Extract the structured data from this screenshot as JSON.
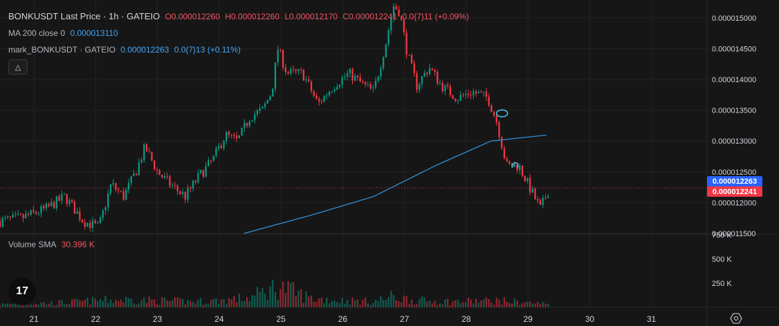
{
  "legend": {
    "symbol": "BONKUSDT Last Price · 1h · GATEIO",
    "open": "O0.000012260",
    "high": "H0.000012260",
    "low": "L0.000012170",
    "close": "C0.000012241",
    "change": "0.0{7}11 (+0.09%)",
    "ma_label": "MA 200 close 0",
    "ma_value": "0.000013110",
    "mark_label": "mark_BONKUSDT · GATEIO",
    "mark_value": "0.000012263",
    "mark_change": "0.0{7}13 (+0.11%)",
    "volume_label": "Volume SMA",
    "volume_value": "30.396 K"
  },
  "logo_text": "17",
  "icons": {
    "collapse": "chevron-up-icon",
    "settings": "gear-icon",
    "logo": "tradingview-logo-icon"
  },
  "colors": {
    "up": "#089981",
    "down": "#f23645",
    "ma": "#2d8fd8",
    "mark_badge": "#2962ff",
    "last_badge": "#f23645"
  },
  "chart_data": {
    "type": "candlestick",
    "price_axis": {
      "ylim": [
        1.15e-05,
        1.52e-05
      ],
      "ticks": [
        1.15e-05,
        1.2e-05,
        1.25e-05,
        1.3e-05,
        1.35e-05,
        1.4e-05,
        1.45e-05,
        1.5e-05
      ],
      "tick_labels": [
        "0.000011500",
        "0.000012000",
        "0.000012500",
        "0.000013000",
        "0.000013500",
        "0.000014000",
        "0.000014500",
        "0.000015000"
      ]
    },
    "volume_axis": {
      "ylim": [
        0,
        750000
      ],
      "ticks": [
        250000,
        500000,
        750000
      ],
      "tick_labels": [
        "250 K",
        "500 K",
        "750 K"
      ]
    },
    "x_axis": {
      "days": [
        21,
        22,
        23,
        24,
        25,
        26,
        27,
        28,
        29,
        30,
        31
      ],
      "labels": [
        "21",
        "22",
        "23",
        "24",
        "25",
        "26",
        "27",
        "28",
        "29",
        "30",
        "31"
      ],
      "xlim": [
        20.45,
        31.9
      ]
    },
    "last_price": 1.2241e-05,
    "last_price_label": "0.000012241",
    "mark_price": 1.2263e-05,
    "mark_price_label": "0.000012263",
    "close_path": [
      [
        20.45,
        1.17e-05
      ],
      [
        20.8,
        1.175e-05
      ],
      [
        21.2,
        1.19e-05
      ],
      [
        21.5,
        1.21e-05
      ],
      [
        21.8,
        1.17e-05
      ],
      [
        22.05,
        1.16e-05
      ],
      [
        22.25,
        1.23e-05
      ],
      [
        22.45,
        1.21e-05
      ],
      [
        22.65,
        1.25e-05
      ],
      [
        22.8,
        1.29e-05
      ],
      [
        23.0,
        1.25e-05
      ],
      [
        23.2,
        1.23e-05
      ],
      [
        23.45,
        1.21e-05
      ],
      [
        23.65,
        1.24e-05
      ],
      [
        23.9,
        1.27e-05
      ],
      [
        24.1,
        1.31e-05
      ],
      [
        24.3,
        1.3e-05
      ],
      [
        24.5,
        1.34e-05
      ],
      [
        24.7,
        1.35e-05
      ],
      [
        24.85,
        1.38e-05
      ],
      [
        24.95,
        1.45e-05
      ],
      [
        25.1,
        1.41e-05
      ],
      [
        25.35,
        1.41e-05
      ],
      [
        25.6,
        1.36e-05
      ],
      [
        25.85,
        1.39e-05
      ],
      [
        26.1,
        1.41e-05
      ],
      [
        26.35,
        1.39e-05
      ],
      [
        26.5,
        1.38e-05
      ],
      [
        26.7,
        1.46e-05
      ],
      [
        26.82,
        1.52e-05
      ],
      [
        26.92,
        1.51e-05
      ],
      [
        27.05,
        1.44e-05
      ],
      [
        27.2,
        1.39e-05
      ],
      [
        27.4,
        1.42e-05
      ],
      [
        27.6,
        1.39e-05
      ],
      [
        27.85,
        1.37e-05
      ],
      [
        28.1,
        1.38e-05
      ],
      [
        28.35,
        1.37e-05
      ],
      [
        28.5,
        1.33e-05
      ],
      [
        28.65,
        1.26e-05
      ],
      [
        28.85,
        1.26e-05
      ],
      [
        29.05,
        1.22e-05
      ],
      [
        29.2,
        1.19e-05
      ],
      [
        29.33,
        1.22e-05
      ]
    ],
    "ma200": [
      [
        24.4,
        1.15e-05
      ],
      [
        25.5,
        1.18e-05
      ],
      [
        26.5,
        1.21e-05
      ],
      [
        27.5,
        1.26e-05
      ],
      [
        28.4,
        1.3e-05
      ],
      [
        29.33,
        1.31e-05
      ]
    ],
    "volume_path": [
      [
        20.45,
        30000
      ],
      [
        21.0,
        40000
      ],
      [
        21.5,
        50000
      ],
      [
        22.0,
        70000
      ],
      [
        22.5,
        80000
      ],
      [
        23.0,
        70000
      ],
      [
        23.5,
        60000
      ],
      [
        24.0,
        70000
      ],
      [
        24.5,
        100000
      ],
      [
        24.95,
        220000
      ],
      [
        25.5,
        90000
      ],
      [
        26.0,
        70000
      ],
      [
        26.5,
        60000
      ],
      [
        26.8,
        110000
      ],
      [
        27.2,
        70000
      ],
      [
        27.8,
        60000
      ],
      [
        28.5,
        70000
      ],
      [
        29.0,
        50000
      ],
      [
        29.33,
        35000
      ]
    ],
    "annotations": [
      "hand-drawn circle near 28.55",
      "hand-drawn mark near 28.8"
    ]
  }
}
